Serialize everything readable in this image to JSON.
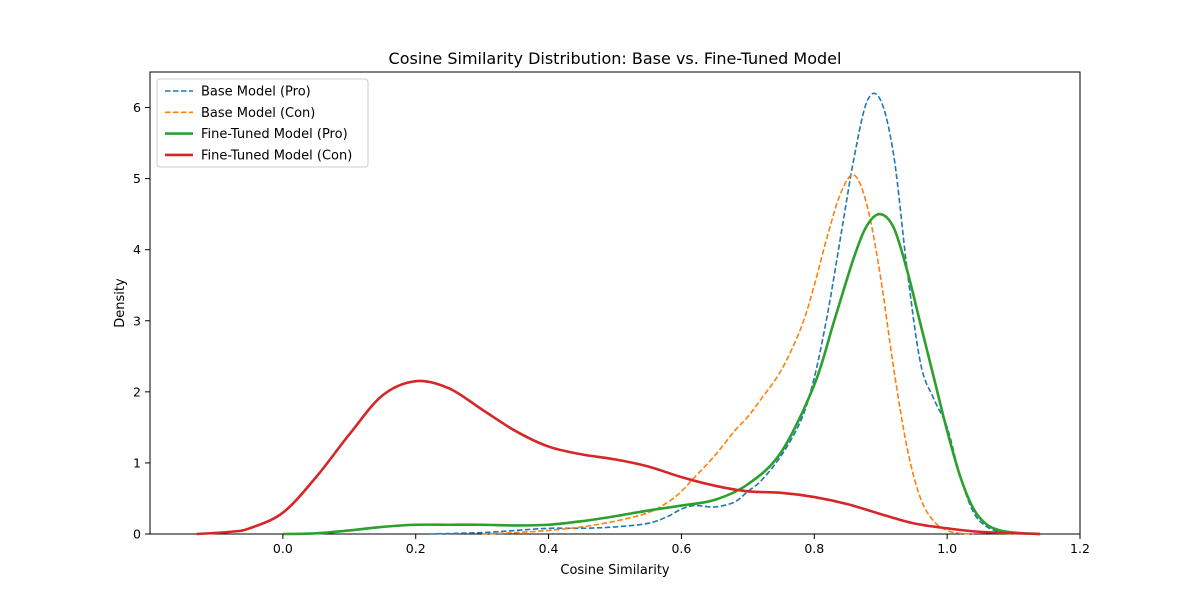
{
  "chart_data": {
    "type": "line",
    "title": "Cosine Similarity Distribution: Base vs. Fine-Tuned Model",
    "xlabel": "Cosine Similarity",
    "ylabel": "Density",
    "xlim": [
      -0.2,
      1.2
    ],
    "ylim": [
      0,
      6.5
    ],
    "xticks": [
      "0.0",
      "0.2",
      "0.4",
      "0.6",
      "0.8",
      "1.0",
      "1.2"
    ],
    "yticks": [
      "0",
      "1",
      "2",
      "3",
      "4",
      "5",
      "6"
    ],
    "grid": false,
    "legend_position": "top-left",
    "series": [
      {
        "name": "Base Model (Pro)",
        "color": "#1f77b4",
        "style": "dashed",
        "x": [
          0.22,
          0.3,
          0.35,
          0.4,
          0.45,
          0.5,
          0.55,
          0.58,
          0.6,
          0.62,
          0.65,
          0.68,
          0.7,
          0.72,
          0.75,
          0.78,
          0.8,
          0.82,
          0.84,
          0.86,
          0.88,
          0.9,
          0.92,
          0.94,
          0.96,
          0.98,
          1.0,
          1.02,
          1.04,
          1.06,
          1.08,
          1.1
        ],
        "y": [
          0.0,
          0.02,
          0.05,
          0.08,
          0.08,
          0.1,
          0.15,
          0.25,
          0.35,
          0.4,
          0.38,
          0.45,
          0.6,
          0.75,
          1.1,
          1.6,
          2.2,
          3.1,
          4.2,
          5.3,
          6.1,
          6.1,
          5.3,
          3.7,
          2.4,
          1.9,
          1.5,
          0.8,
          0.3,
          0.1,
          0.03,
          0.0
        ]
      },
      {
        "name": "Base Model (Con)",
        "color": "#ff7f0e",
        "style": "dashed",
        "x": [
          0.3,
          0.35,
          0.4,
          0.45,
          0.5,
          0.55,
          0.58,
          0.6,
          0.62,
          0.65,
          0.68,
          0.7,
          0.72,
          0.75,
          0.78,
          0.8,
          0.82,
          0.84,
          0.86,
          0.88,
          0.9,
          0.92,
          0.94,
          0.96,
          0.98,
          1.0,
          1.02,
          1.04
        ],
        "y": [
          0.0,
          0.02,
          0.05,
          0.1,
          0.18,
          0.3,
          0.45,
          0.6,
          0.8,
          1.1,
          1.45,
          1.65,
          1.9,
          2.3,
          2.9,
          3.5,
          4.2,
          4.8,
          5.05,
          4.6,
          3.6,
          2.3,
          1.2,
          0.5,
          0.18,
          0.05,
          0.01,
          0.0
        ]
      },
      {
        "name": "Fine-Tuned Model (Pro)",
        "color": "#2ca02c",
        "style": "solid",
        "x": [
          0.0,
          0.05,
          0.1,
          0.15,
          0.2,
          0.25,
          0.3,
          0.35,
          0.4,
          0.45,
          0.5,
          0.55,
          0.6,
          0.65,
          0.7,
          0.75,
          0.8,
          0.83,
          0.86,
          0.88,
          0.9,
          0.92,
          0.94,
          0.96,
          0.98,
          1.0,
          1.02,
          1.04,
          1.06,
          1.08,
          1.1,
          1.14
        ],
        "y": [
          0.0,
          0.01,
          0.05,
          0.1,
          0.13,
          0.13,
          0.13,
          0.12,
          0.13,
          0.18,
          0.25,
          0.33,
          0.4,
          0.48,
          0.7,
          1.15,
          2.1,
          3.0,
          3.9,
          4.35,
          4.5,
          4.3,
          3.7,
          2.95,
          2.2,
          1.45,
          0.8,
          0.35,
          0.13,
          0.05,
          0.02,
          0.0
        ]
      },
      {
        "name": "Fine-Tuned Model (Con)",
        "color": "#d62728",
        "style": "solid",
        "x": [
          -0.13,
          -0.08,
          -0.05,
          0.0,
          0.05,
          0.1,
          0.15,
          0.2,
          0.25,
          0.3,
          0.35,
          0.4,
          0.45,
          0.5,
          0.55,
          0.6,
          0.65,
          0.7,
          0.75,
          0.8,
          0.85,
          0.9,
          0.95,
          1.0,
          1.05,
          1.14
        ],
        "y": [
          0.0,
          0.03,
          0.08,
          0.3,
          0.8,
          1.4,
          1.95,
          2.15,
          2.05,
          1.75,
          1.45,
          1.23,
          1.12,
          1.05,
          0.95,
          0.8,
          0.68,
          0.6,
          0.58,
          0.52,
          0.42,
          0.28,
          0.15,
          0.08,
          0.03,
          0.0
        ]
      }
    ]
  }
}
